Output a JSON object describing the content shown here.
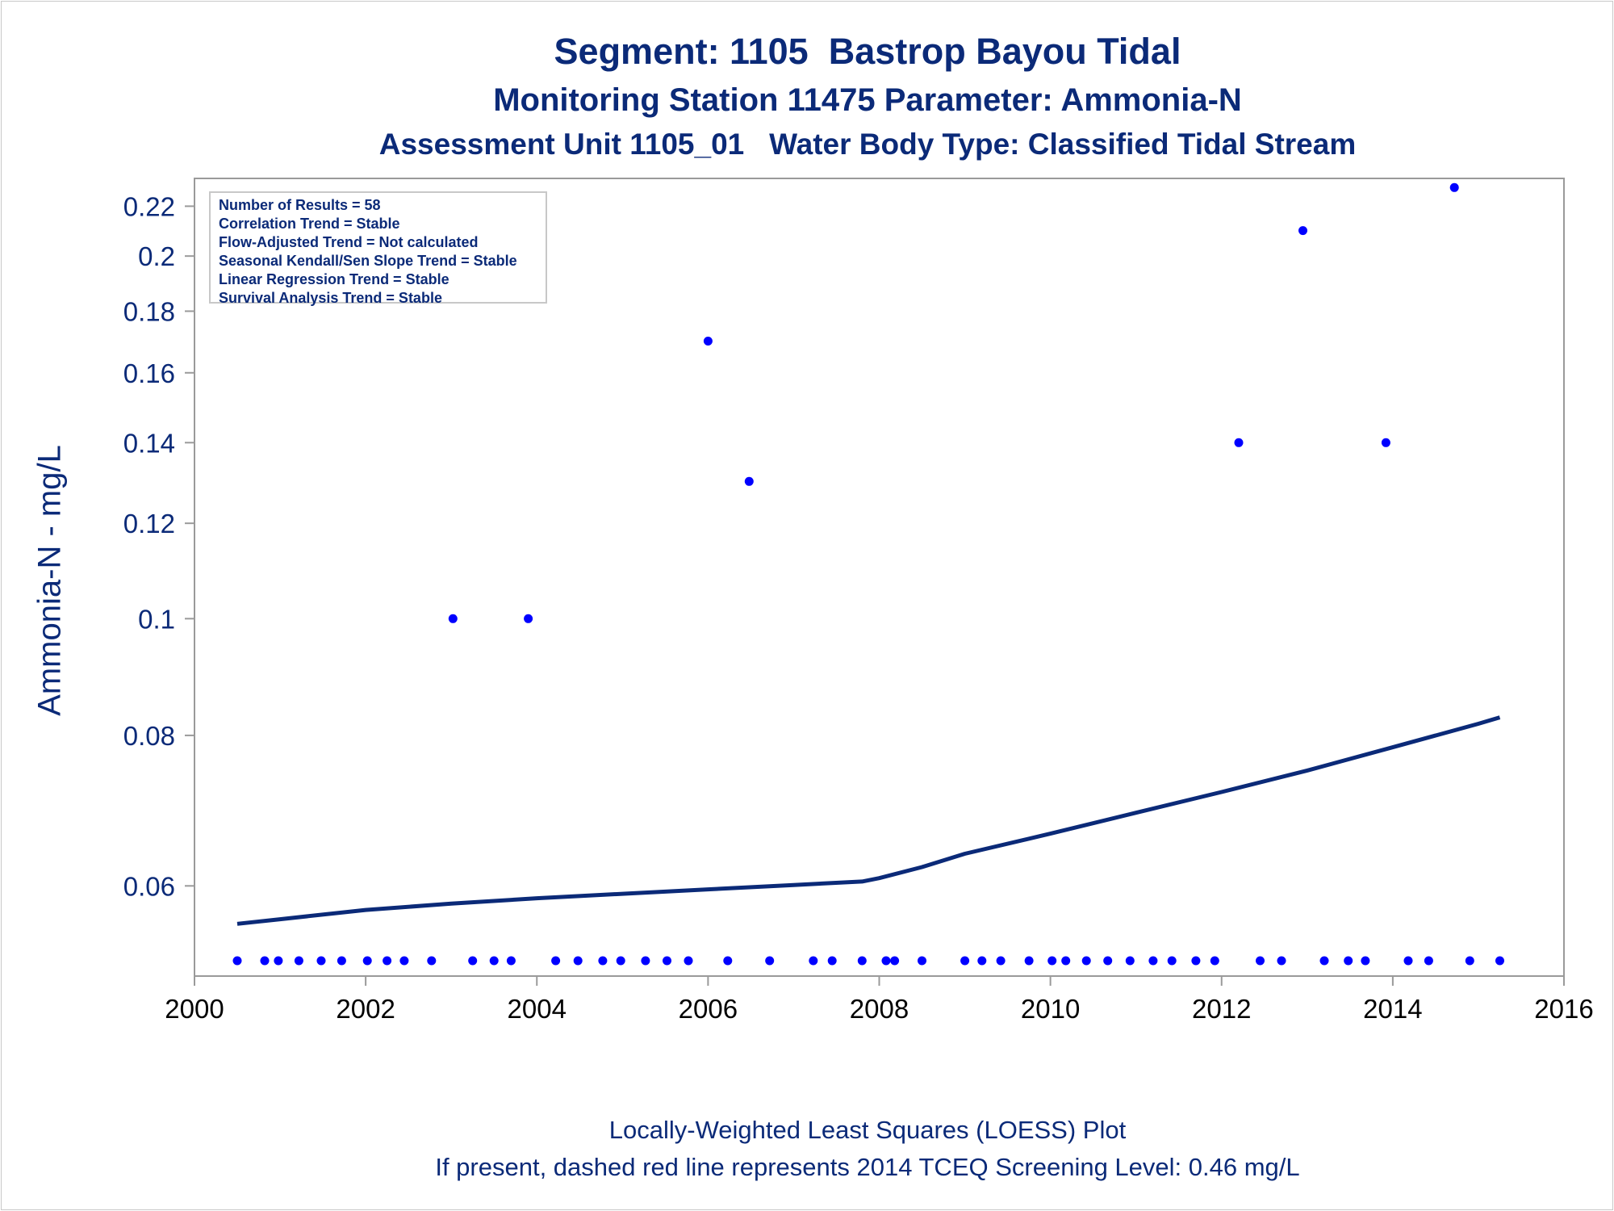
{
  "titles": {
    "line1": "Segment: 1105  Bastrop Bayou Tidal",
    "line2": "Monitoring Station 11475 Parameter: Ammonia-N",
    "line3": "Assessment Unit 1105_01   Water Body Type: Classified Tidal Stream"
  },
  "stats_box": [
    "Number of Results = 58",
    "Correlation Trend = Stable",
    "Flow-Adjusted Trend = Not calculated",
    "Seasonal Kendall/Sen Slope Trend = Stable",
    "Linear Regression Trend = Stable",
    "Survival Analysis Trend = Stable"
  ],
  "footnotes": {
    "line1": "Locally-Weighted Least Squares (LOESS) Plot",
    "line2": "If present, dashed red line represents 2014 TCEQ Screening Level: 0.46 mg/L"
  },
  "colors": {
    "text": "#0b2a78",
    "points": "#0000ff",
    "loess": "#0b2a78",
    "axis": "#9a9a9a"
  },
  "chart_data": {
    "type": "scatter",
    "ylabel": "Ammonia-N - mg/L",
    "xlabel": "",
    "y_scale": "log",
    "xlim": [
      2000,
      2016
    ],
    "ylim": [
      0.0505,
      0.232
    ],
    "x_ticks": [
      2000,
      2002,
      2004,
      2006,
      2008,
      2010,
      2012,
      2014,
      2016
    ],
    "x_tick_labels": [
      "2000",
      "2002",
      "2004",
      "2006",
      "2008",
      "2010",
      "2012",
      "2014",
      "2016"
    ],
    "y_ticks": [
      0.06,
      0.08,
      0.1,
      0.12,
      0.14,
      0.16,
      0.18,
      0.2,
      0.22
    ],
    "y_tick_labels": [
      "0.06",
      "0.08",
      "0.1",
      "0.12",
      "0.14",
      "0.16",
      "0.18",
      "0.2",
      "0.22"
    ],
    "series": [
      {
        "kind": "points",
        "x": [
          2000.5,
          2000.82,
          2000.98,
          2001.22,
          2001.48,
          2001.72,
          2002.02,
          2002.25,
          2002.45,
          2002.77,
          2003.02,
          2003.25,
          2003.5,
          2003.7,
          2003.9,
          2004.22,
          2004.48,
          2004.77,
          2004.98,
          2005.27,
          2005.52,
          2005.77,
          2006.0,
          2006.23,
          2006.48,
          2006.72,
          2007.23,
          2007.45,
          2007.8,
          2008.08,
          2008.18,
          2008.5,
          2009.0,
          2009.2,
          2009.42,
          2009.75,
          2010.02,
          2010.18,
          2010.42,
          2010.67,
          2010.93,
          2011.2,
          2011.42,
          2011.7,
          2011.92,
          2012.2,
          2012.45,
          2012.7,
          2012.95,
          2013.2,
          2013.48,
          2013.68,
          2013.92,
          2014.18,
          2014.42,
          2014.72,
          2014.9,
          2015.25
        ],
        "y": [
          0.052,
          0.052,
          0.052,
          0.052,
          0.052,
          0.052,
          0.052,
          0.052,
          0.052,
          0.052,
          0.1,
          0.052,
          0.052,
          0.052,
          0.1,
          0.052,
          0.052,
          0.052,
          0.052,
          0.052,
          0.052,
          0.052,
          0.17,
          0.052,
          0.13,
          0.052,
          0.052,
          0.052,
          0.052,
          0.052,
          0.052,
          0.052,
          0.052,
          0.052,
          0.052,
          0.052,
          0.052,
          0.052,
          0.052,
          0.052,
          0.052,
          0.052,
          0.052,
          0.052,
          0.052,
          0.14,
          0.052,
          0.052,
          0.21,
          0.052,
          0.052,
          0.052,
          0.14,
          0.052,
          0.052,
          0.228,
          0.052,
          0.052
        ]
      },
      {
        "kind": "loess",
        "x": [
          2000.5,
          2001.0,
          2002.0,
          2003.0,
          2004.0,
          2005.0,
          2006.0,
          2007.0,
          2007.8,
          2008.0,
          2008.5,
          2009.0,
          2010.0,
          2011.0,
          2012.0,
          2013.0,
          2014.0,
          2015.0,
          2015.25
        ],
        "y": [
          0.0558,
          0.0563,
          0.0573,
          0.058,
          0.0586,
          0.0591,
          0.0596,
          0.0601,
          0.0605,
          0.0609,
          0.0622,
          0.0638,
          0.0663,
          0.069,
          0.0718,
          0.0748,
          0.0782,
          0.0818,
          0.0828
        ]
      }
    ]
  }
}
